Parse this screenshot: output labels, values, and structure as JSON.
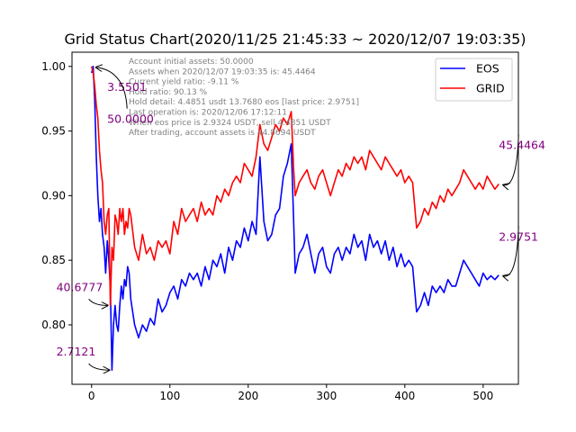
{
  "chart_data": {
    "type": "line",
    "title": "Grid Status Chart(2020/11/25 21:45:33 ~ 2020/12/07 19:03:35)",
    "xlabel": "",
    "ylabel": "",
    "xlim": [
      -25,
      545
    ],
    "ylim": [
      0.754,
      1.011
    ],
    "x_ticks": [
      0,
      100,
      200,
      300,
      400,
      500
    ],
    "y_ticks": [
      0.8,
      0.85,
      0.9,
      0.95,
      1.0
    ],
    "x_tick_labels": [
      "0",
      "100",
      "200",
      "300",
      "400",
      "500"
    ],
    "y_tick_labels": [
      "0.80",
      "0.85",
      "0.90",
      "0.95",
      "1.00"
    ],
    "legend": {
      "placement": "top-right",
      "entries": [
        {
          "label": "EOS",
          "color": "#0000ff"
        },
        {
          "label": "GRID",
          "color": "#ff0000"
        }
      ]
    },
    "series": [
      {
        "name": "EOS",
        "color": "#0000ff",
        "points": [
          [
            0,
            0.995
          ],
          [
            2,
            1.0
          ],
          [
            4,
            0.975
          ],
          [
            6,
            0.93
          ],
          [
            8,
            0.9
          ],
          [
            10,
            0.88
          ],
          [
            12,
            0.89
          ],
          [
            14,
            0.87
          ],
          [
            16,
            0.86
          ],
          [
            18,
            0.84
          ],
          [
            20,
            0.865
          ],
          [
            22,
            0.85
          ],
          [
            24,
            0.83
          ],
          [
            26,
            0.765
          ],
          [
            28,
            0.8
          ],
          [
            30,
            0.815
          ],
          [
            32,
            0.8
          ],
          [
            34,
            0.795
          ],
          [
            36,
            0.815
          ],
          [
            38,
            0.83
          ],
          [
            40,
            0.82
          ],
          [
            42,
            0.835
          ],
          [
            44,
            0.83
          ],
          [
            46,
            0.845
          ],
          [
            48,
            0.84
          ],
          [
            50,
            0.82
          ],
          [
            55,
            0.8
          ],
          [
            60,
            0.79
          ],
          [
            65,
            0.8
          ],
          [
            70,
            0.795
          ],
          [
            75,
            0.805
          ],
          [
            80,
            0.8
          ],
          [
            85,
            0.82
          ],
          [
            90,
            0.81
          ],
          [
            95,
            0.815
          ],
          [
            100,
            0.825
          ],
          [
            105,
            0.83
          ],
          [
            110,
            0.82
          ],
          [
            115,
            0.835
          ],
          [
            120,
            0.83
          ],
          [
            125,
            0.84
          ],
          [
            130,
            0.835
          ],
          [
            135,
            0.84
          ],
          [
            140,
            0.83
          ],
          [
            145,
            0.845
          ],
          [
            150,
            0.835
          ],
          [
            155,
            0.85
          ],
          [
            160,
            0.845
          ],
          [
            165,
            0.855
          ],
          [
            170,
            0.84
          ],
          [
            175,
            0.86
          ],
          [
            180,
            0.85
          ],
          [
            185,
            0.865
          ],
          [
            190,
            0.86
          ],
          [
            195,
            0.875
          ],
          [
            200,
            0.865
          ],
          [
            205,
            0.88
          ],
          [
            210,
            0.87
          ],
          [
            215,
            0.93
          ],
          [
            220,
            0.88
          ],
          [
            225,
            0.865
          ],
          [
            230,
            0.87
          ],
          [
            235,
            0.885
          ],
          [
            240,
            0.89
          ],
          [
            245,
            0.915
          ],
          [
            250,
            0.925
          ],
          [
            255,
            0.94
          ],
          [
            258,
            0.88
          ],
          [
            260,
            0.84
          ],
          [
            265,
            0.855
          ],
          [
            270,
            0.86
          ],
          [
            275,
            0.87
          ],
          [
            280,
            0.855
          ],
          [
            285,
            0.84
          ],
          [
            290,
            0.855
          ],
          [
            295,
            0.86
          ],
          [
            300,
            0.845
          ],
          [
            305,
            0.84
          ],
          [
            310,
            0.855
          ],
          [
            315,
            0.86
          ],
          [
            320,
            0.85
          ],
          [
            325,
            0.86
          ],
          [
            330,
            0.855
          ],
          [
            335,
            0.87
          ],
          [
            340,
            0.86
          ],
          [
            345,
            0.865
          ],
          [
            350,
            0.85
          ],
          [
            355,
            0.87
          ],
          [
            360,
            0.86
          ],
          [
            365,
            0.865
          ],
          [
            370,
            0.855
          ],
          [
            375,
            0.865
          ],
          [
            380,
            0.85
          ],
          [
            385,
            0.86
          ],
          [
            390,
            0.845
          ],
          [
            395,
            0.855
          ],
          [
            400,
            0.845
          ],
          [
            405,
            0.85
          ],
          [
            410,
            0.845
          ],
          [
            415,
            0.81
          ],
          [
            420,
            0.815
          ],
          [
            425,
            0.825
          ],
          [
            430,
            0.815
          ],
          [
            435,
            0.83
          ],
          [
            440,
            0.825
          ],
          [
            445,
            0.83
          ],
          [
            450,
            0.825
          ],
          [
            455,
            0.835
          ],
          [
            460,
            0.83
          ],
          [
            465,
            0.83
          ],
          [
            470,
            0.84
          ],
          [
            475,
            0.85
          ],
          [
            480,
            0.845
          ],
          [
            485,
            0.84
          ],
          [
            490,
            0.835
          ],
          [
            495,
            0.83
          ],
          [
            500,
            0.84
          ],
          [
            505,
            0.835
          ],
          [
            510,
            0.838
          ],
          [
            515,
            0.835
          ],
          [
            520,
            0.8385
          ]
        ]
      },
      {
        "name": "GRID",
        "color": "#ff0000",
        "points": [
          [
            0,
            1.0
          ],
          [
            2,
            0.995
          ],
          [
            4,
            0.985
          ],
          [
            6,
            0.97
          ],
          [
            8,
            0.96
          ],
          [
            10,
            0.935
          ],
          [
            12,
            0.92
          ],
          [
            14,
            0.91
          ],
          [
            16,
            0.88
          ],
          [
            18,
            0.87
          ],
          [
            20,
            0.885
          ],
          [
            22,
            0.89
          ],
          [
            24,
            0.815
          ],
          [
            26,
            0.86
          ],
          [
            28,
            0.85
          ],
          [
            30,
            0.885
          ],
          [
            32,
            0.88
          ],
          [
            34,
            0.87
          ],
          [
            36,
            0.89
          ],
          [
            38,
            0.88
          ],
          [
            40,
            0.89
          ],
          [
            42,
            0.87
          ],
          [
            44,
            0.88
          ],
          [
            46,
            0.875
          ],
          [
            48,
            0.89
          ],
          [
            50,
            0.885
          ],
          [
            55,
            0.86
          ],
          [
            60,
            0.85
          ],
          [
            65,
            0.87
          ],
          [
            70,
            0.855
          ],
          [
            75,
            0.86
          ],
          [
            80,
            0.85
          ],
          [
            85,
            0.865
          ],
          [
            90,
            0.86
          ],
          [
            95,
            0.865
          ],
          [
            100,
            0.855
          ],
          [
            105,
            0.88
          ],
          [
            110,
            0.87
          ],
          [
            115,
            0.89
          ],
          [
            120,
            0.88
          ],
          [
            125,
            0.885
          ],
          [
            130,
            0.89
          ],
          [
            135,
            0.88
          ],
          [
            140,
            0.895
          ],
          [
            145,
            0.885
          ],
          [
            150,
            0.89
          ],
          [
            155,
            0.885
          ],
          [
            160,
            0.9
          ],
          [
            165,
            0.895
          ],
          [
            170,
            0.905
          ],
          [
            175,
            0.9
          ],
          [
            180,
            0.91
          ],
          [
            185,
            0.915
          ],
          [
            190,
            0.91
          ],
          [
            195,
            0.925
          ],
          [
            200,
            0.92
          ],
          [
            205,
            0.915
          ],
          [
            210,
            0.93
          ],
          [
            215,
            0.955
          ],
          [
            220,
            0.94
          ],
          [
            225,
            0.935
          ],
          [
            230,
            0.945
          ],
          [
            235,
            0.955
          ],
          [
            240,
            0.95
          ],
          [
            245,
            0.96
          ],
          [
            250,
            0.955
          ],
          [
            255,
            0.965
          ],
          [
            258,
            0.92
          ],
          [
            260,
            0.9
          ],
          [
            265,
            0.91
          ],
          [
            270,
            0.915
          ],
          [
            275,
            0.92
          ],
          [
            280,
            0.91
          ],
          [
            285,
            0.905
          ],
          [
            290,
            0.915
          ],
          [
            295,
            0.92
          ],
          [
            300,
            0.91
          ],
          [
            305,
            0.9
          ],
          [
            310,
            0.91
          ],
          [
            315,
            0.92
          ],
          [
            320,
            0.915
          ],
          [
            325,
            0.925
          ],
          [
            330,
            0.92
          ],
          [
            335,
            0.93
          ],
          [
            340,
            0.925
          ],
          [
            345,
            0.93
          ],
          [
            350,
            0.92
          ],
          [
            355,
            0.935
          ],
          [
            360,
            0.93
          ],
          [
            365,
            0.925
          ],
          [
            370,
            0.92
          ],
          [
            375,
            0.93
          ],
          [
            380,
            0.925
          ],
          [
            385,
            0.92
          ],
          [
            390,
            0.915
          ],
          [
            395,
            0.92
          ],
          [
            400,
            0.91
          ],
          [
            405,
            0.915
          ],
          [
            410,
            0.91
          ],
          [
            415,
            0.875
          ],
          [
            420,
            0.88
          ],
          [
            425,
            0.89
          ],
          [
            430,
            0.885
          ],
          [
            435,
            0.895
          ],
          [
            440,
            0.89
          ],
          [
            445,
            0.9
          ],
          [
            450,
            0.895
          ],
          [
            455,
            0.905
          ],
          [
            460,
            0.9
          ],
          [
            465,
            0.905
          ],
          [
            470,
            0.91
          ],
          [
            475,
            0.92
          ],
          [
            480,
            0.915
          ],
          [
            485,
            0.91
          ],
          [
            490,
            0.905
          ],
          [
            495,
            0.91
          ],
          [
            500,
            0.905
          ],
          [
            505,
            0.915
          ],
          [
            510,
            0.91
          ],
          [
            515,
            0.905
          ],
          [
            520,
            0.909
          ]
        ]
      }
    ],
    "info_lines": [
      "Account initial assets: 50.0000",
      "Assets when 2020/12/07 19:03:35 is: 45.4464",
      "Current yield ratio: -9.11 %",
      "Hold ratio: 90.13 %",
      "Hold detail: 4.4851 usdt 13.7680 eos [last price: 2.9751]",
      "Last operation is: 2020/12/06 17:12:11",
      "When eos price is 2.9324 USDT, sell 4.4851 USDT",
      "After trading, account assets is 44.8694 USDT"
    ],
    "annotations": [
      {
        "text": "3.5501",
        "x": 0,
        "y": 1.0,
        "arrow": false,
        "text_x": 20,
        "text_y": 0.984
      },
      {
        "text": "50.0000",
        "x": 0,
        "y": 1.0,
        "arrow": true,
        "text_x": 20,
        "text_y": 0.959
      },
      {
        "text": "40.6777",
        "x": 24,
        "y": 0.815,
        "arrow": true,
        "text_x": -45,
        "text_y": 0.829
      },
      {
        "text": "2.7121",
        "x": 26,
        "y": 0.765,
        "arrow": true,
        "text_x": -45,
        "text_y": 0.779
      },
      {
        "text": "45.4464",
        "x": 520,
        "y": 0.909,
        "arrow": true,
        "text_x": 520,
        "text_y": 0.939
      },
      {
        "text": "2.9751",
        "x": 520,
        "y": 0.8385,
        "arrow": true,
        "text_x": 520,
        "text_y": 0.868
      }
    ]
  }
}
